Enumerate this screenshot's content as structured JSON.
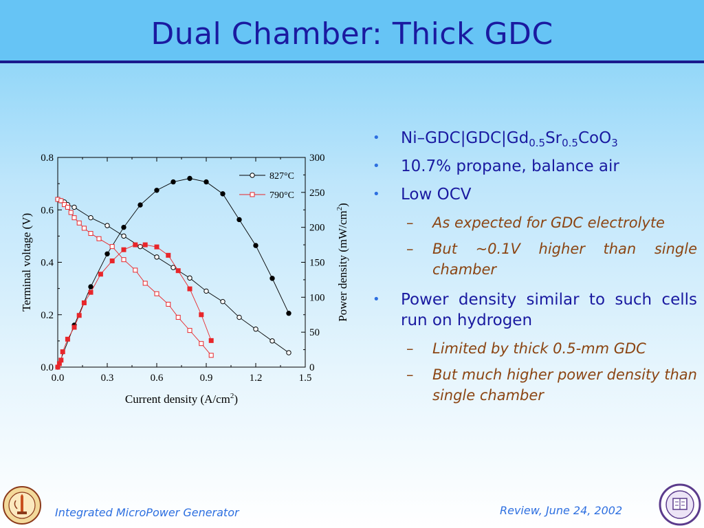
{
  "slide": {
    "title": "Dual Chamber:  Thick GDC"
  },
  "bullets": [
    {
      "parts": [
        "Ni–GDC|GDC|Gd",
        "0.5",
        "Sr",
        "0.5",
        "CoO",
        "3"
      ]
    },
    {
      "text": "10.7% propane, balance air"
    },
    {
      "text": "Low OCV",
      "subs": [
        "As expected for GDC electrolyte",
        "But ~0.1V higher than single chamber"
      ]
    },
    {
      "text": "Power density similar to such cells run on hydrogen",
      "subs": [
        "Limited by thick 0.5-mm GDC",
        "But much higher power density than single chamber"
      ]
    }
  ],
  "footer": {
    "left": "Integrated MicroPower Generator",
    "right": "Review, June 24, 2002"
  },
  "chart_data": {
    "type": "scatter",
    "xlabel": "Current density (A/cm2)",
    "ylabel_left": "Terminal voltage (V)",
    "ylabel_right": "Power density (mW/cm2)",
    "xlim": [
      0.0,
      1.5
    ],
    "ylim_left": [
      0.0,
      0.8
    ],
    "ylim_right": [
      0,
      300
    ],
    "x_ticks": [
      "0.0",
      "0.3",
      "0.6",
      "0.9",
      "1.2",
      "1.5"
    ],
    "yl_ticks": [
      "0.0",
      "0.2",
      "0.4",
      "0.6",
      "0.8"
    ],
    "yr_ticks": [
      "0",
      "50",
      "100",
      "150",
      "200",
      "250",
      "300"
    ],
    "legend": {
      "placement": "top-right",
      "entries": [
        "827°C",
        "790°C"
      ]
    },
    "series": [
      {
        "name": "827°C",
        "kind": "voltage",
        "axis": "left",
        "color": "#000000",
        "x": [
          0.0,
          0.02,
          0.04,
          0.06,
          0.1,
          0.2,
          0.3,
          0.4,
          0.5,
          0.6,
          0.7,
          0.8,
          0.9,
          1.0,
          1.1,
          1.2,
          1.3,
          1.4
        ],
        "y": [
          0.64,
          0.635,
          0.63,
          0.62,
          0.61,
          0.57,
          0.54,
          0.5,
          0.46,
          0.42,
          0.38,
          0.34,
          0.29,
          0.25,
          0.19,
          0.145,
          0.1,
          0.055
        ]
      },
      {
        "name": "827°C",
        "kind": "power",
        "axis": "right",
        "color": "#000000",
        "x": [
          0.0,
          0.1,
          0.2,
          0.3,
          0.4,
          0.5,
          0.6,
          0.7,
          0.8,
          0.9,
          1.0,
          1.1,
          1.2,
          1.3,
          1.4
        ],
        "y": [
          0,
          60,
          115,
          162,
          200,
          232,
          253,
          265,
          270,
          265,
          248,
          211,
          174,
          127,
          77
        ]
      },
      {
        "name": "790°C",
        "kind": "voltage",
        "axis": "left",
        "color": "#e8262a",
        "x": [
          0.0,
          0.02,
          0.04,
          0.06,
          0.08,
          0.1,
          0.13,
          0.16,
          0.2,
          0.25,
          0.33,
          0.4,
          0.47,
          0.53,
          0.6,
          0.67,
          0.73,
          0.8,
          0.87,
          0.93
        ],
        "y": [
          0.64,
          0.635,
          0.62,
          0.61,
          0.59,
          0.57,
          0.55,
          0.53,
          0.51,
          0.49,
          0.46,
          0.41,
          0.37,
          0.32,
          0.28,
          0.24,
          0.19,
          0.14,
          0.09,
          0.045
        ]
      },
      {
        "name": "790°C",
        "kind": "power",
        "axis": "right",
        "color": "#e8262a",
        "x": [
          0.0,
          0.01,
          0.02,
          0.03,
          0.06,
          0.1,
          0.13,
          0.16,
          0.2,
          0.26,
          0.33,
          0.4,
          0.47,
          0.53,
          0.6,
          0.67,
          0.73,
          0.8,
          0.87,
          0.93
        ],
        "y": [
          0,
          5,
          10,
          22,
          40,
          57,
          74,
          92,
          107,
          133,
          152,
          168,
          175,
          175,
          172,
          160,
          138,
          112,
          75,
          38
        ]
      }
    ]
  }
}
